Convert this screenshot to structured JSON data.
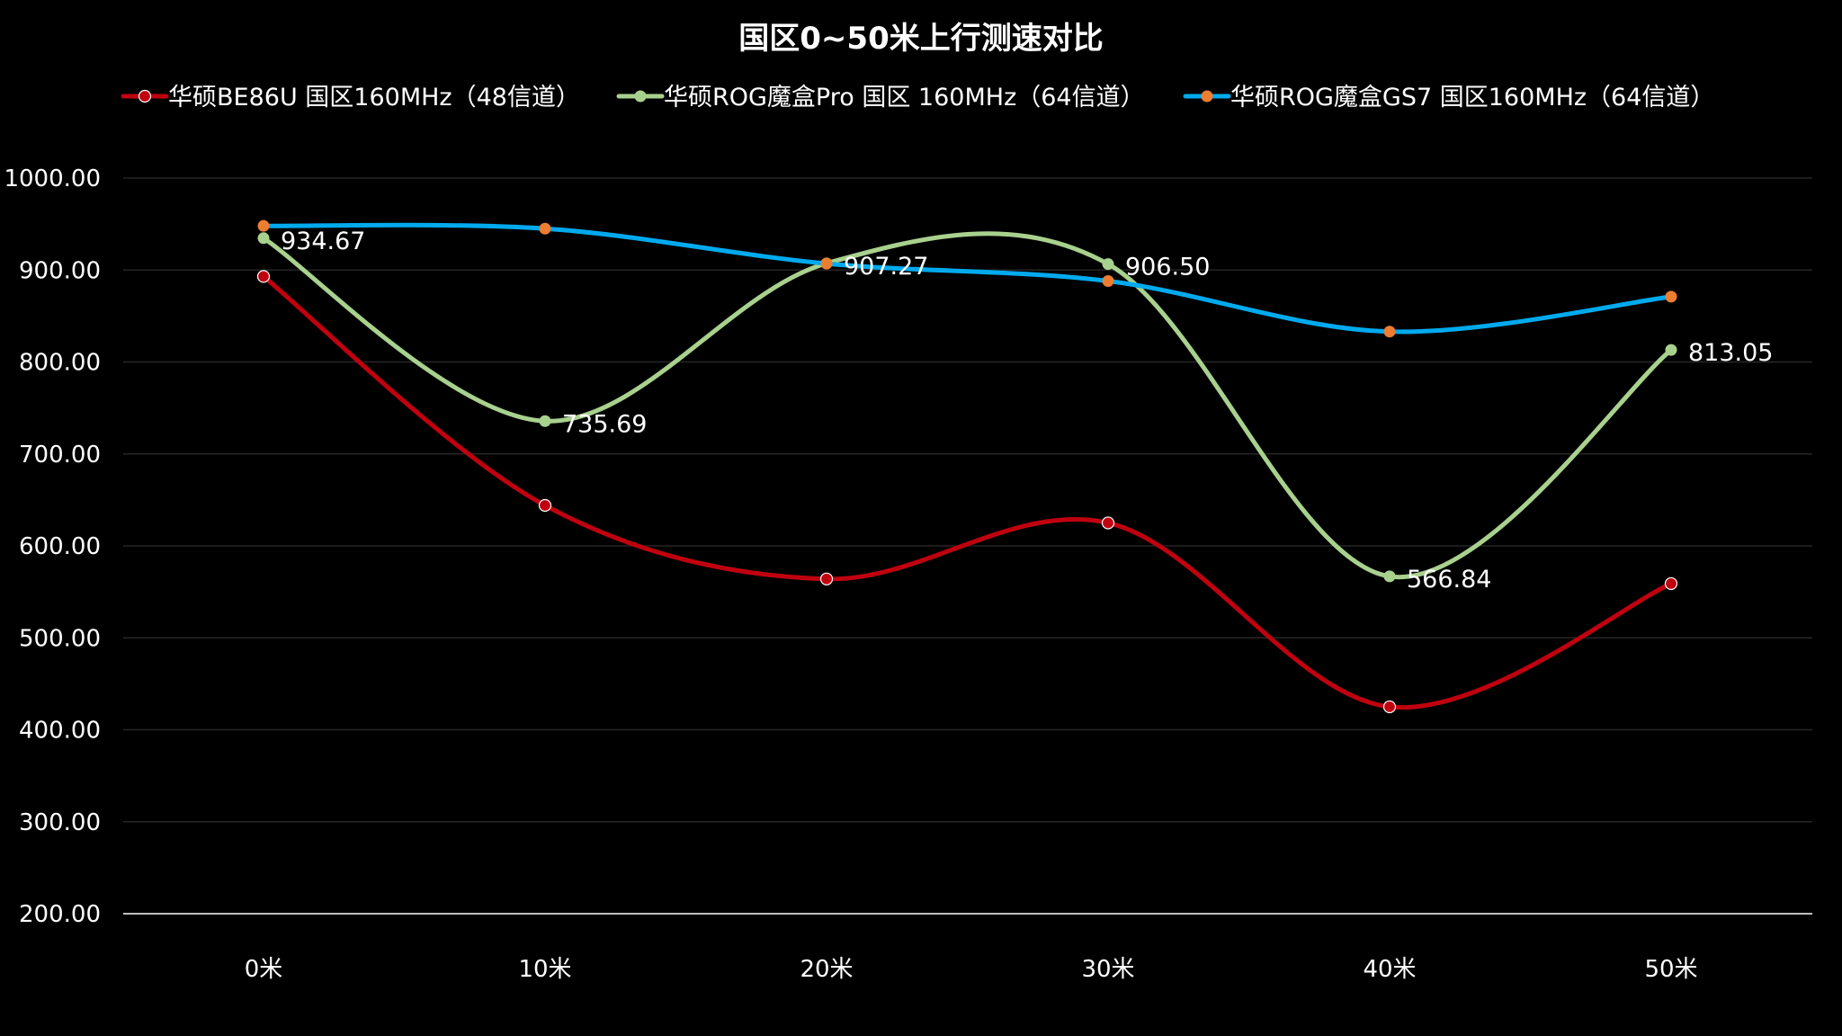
{
  "chart_data": {
    "type": "line",
    "title": "国区0~50米上行测速对比",
    "categories": [
      "0米",
      "10米",
      "20米",
      "30米",
      "40米",
      "50米"
    ],
    "ylim": [
      200,
      1000
    ],
    "yticks": [
      "1000.00",
      "900.00",
      "800.00",
      "700.00",
      "600.00",
      "500.00",
      "400.00",
      "300.00",
      "200.00"
    ],
    "ytick_values": [
      1000,
      900,
      800,
      700,
      600,
      500,
      400,
      300,
      200
    ],
    "grid": true,
    "legend_position": "top",
    "series": [
      {
        "name": "华硕BE86U 国区160MHz（48信道）",
        "color": "#c0000f",
        "marker_color": "#c0000f",
        "values": [
          893,
          644,
          564,
          625,
          425,
          559
        ],
        "data_labels": []
      },
      {
        "name": "华硕ROG魔盒Pro 国区 160MHz（64信道）",
        "color": "#a9d18e",
        "marker_color": "#a9d18e",
        "values": [
          934.67,
          735.69,
          907.27,
          906.5,
          566.84,
          813.05
        ],
        "data_labels": [
          "934.67",
          "735.69",
          "907.27",
          "906.50",
          "566.84",
          "813.05"
        ]
      },
      {
        "name": "华硕ROG魔盒GS7 国区160MHz（64信道）",
        "color": "#00aaee",
        "marker_color": "#ed7d31",
        "values": [
          948,
          945,
          907,
          888,
          833,
          871
        ],
        "data_labels": []
      }
    ]
  }
}
